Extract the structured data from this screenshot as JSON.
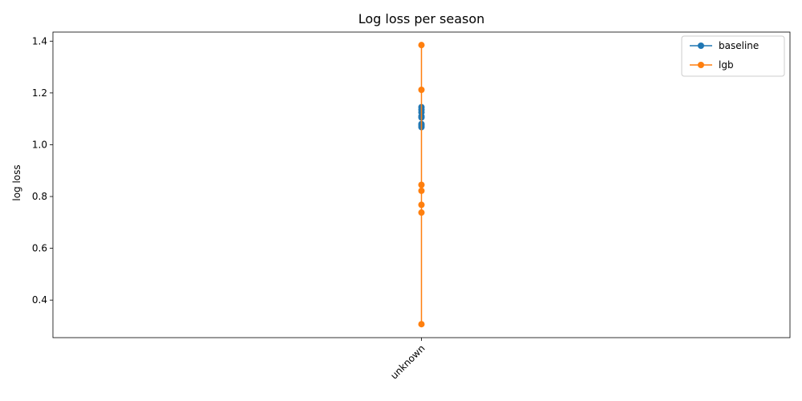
{
  "chart_data": {
    "type": "line",
    "title": "Log loss per season",
    "xlabel": "",
    "ylabel": "log loss",
    "categories": [
      "unknown"
    ],
    "ylim": [
      0.255,
      1.435
    ],
    "yticks": [
      0.4,
      0.6,
      0.8,
      1.0,
      1.2,
      1.4
    ],
    "ytick_labels": [
      "0.4",
      "0.6",
      "0.8",
      "1.0",
      "1.2",
      "1.4"
    ],
    "legend_position": "top-right",
    "grid": false,
    "series": [
      {
        "name": "baseline",
        "color": "#1f77b4",
        "points": [
          {
            "x": "unknown",
            "y": 1.145
          },
          {
            "x": "unknown",
            "y": 1.135
          },
          {
            "x": "unknown",
            "y": 1.125
          },
          {
            "x": "unknown",
            "y": 1.11
          },
          {
            "x": "unknown",
            "y": 1.105
          },
          {
            "x": "unknown",
            "y": 1.08
          },
          {
            "x": "unknown",
            "y": 1.075
          },
          {
            "x": "unknown",
            "y": 1.068
          }
        ]
      },
      {
        "name": "lgb",
        "color": "#ff7f0e",
        "points": [
          {
            "x": "unknown",
            "y": 1.385
          },
          {
            "x": "unknown",
            "y": 1.212
          },
          {
            "x": "unknown",
            "y": 0.845
          },
          {
            "x": "unknown",
            "y": 0.822
          },
          {
            "x": "unknown",
            "y": 0.768
          },
          {
            "x": "unknown",
            "y": 0.738
          },
          {
            "x": "unknown",
            "y": 0.307
          }
        ]
      }
    ]
  }
}
